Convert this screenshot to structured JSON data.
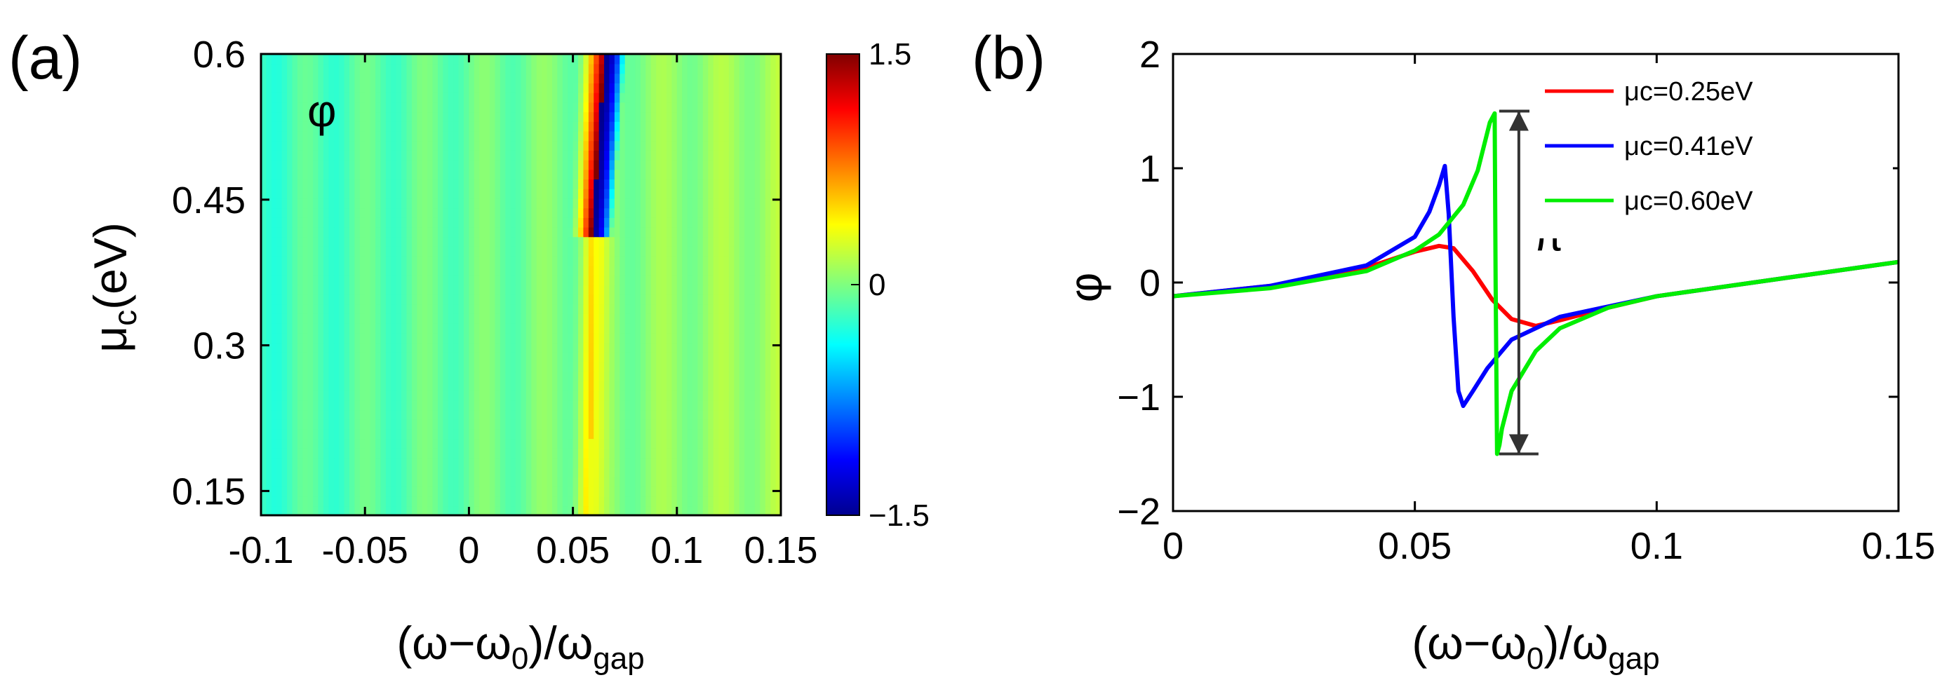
{
  "chart_data": [
    {
      "panel": "(a)",
      "type": "heatmap",
      "title": "",
      "annotation": "φ",
      "xlabel": "(ω−ω0)/ωgap",
      "ylabel": "μc(eV)",
      "xlim": [
        -0.1,
        0.15
      ],
      "ylim": [
        0.125,
        0.6
      ],
      "xticks": [
        "-0.1",
        "-0.05",
        "0",
        "0.05",
        "0.1",
        "0.15"
      ],
      "yticks": [
        "0.15",
        "0.3",
        "0.45",
        "0.6"
      ],
      "colorbar": {
        "min": -1.5,
        "max": 1.5,
        "ticks": [
          "1.5",
          "0",
          "−1.5"
        ],
        "colormap": [
          "#00008f",
          "#0000ff",
          "#00ffff",
          "#7fff7f",
          "#ffff00",
          "#ff0000",
          "#800000"
        ]
      },
      "resonance": {
        "mu_onset": 0.41,
        "omega_low": 0.058,
        "omega_high": 0.066
      }
    },
    {
      "panel": "(b)",
      "type": "line",
      "title": "",
      "xlabel": "(ω−ω0)/ωgap",
      "ylabel": "φ",
      "xlim": [
        0,
        0.15
      ],
      "ylim": [
        -2,
        2
      ],
      "xticks": [
        "0",
        "0.05",
        "0.1",
        "0.15"
      ],
      "yticks": [
        "2",
        "1",
        "0",
        "−1",
        "−2"
      ],
      "legend_position": "top-right",
      "series": [
        {
          "name": "μc=0.25eV",
          "color": "#ff0000",
          "x": [
            0,
            0.02,
            0.04,
            0.05,
            0.055,
            0.058,
            0.062,
            0.066,
            0.07,
            0.075,
            0.08,
            0.09,
            0.1,
            0.12,
            0.15
          ],
          "y": [
            -0.12,
            -0.03,
            0.13,
            0.27,
            0.32,
            0.3,
            0.1,
            -0.15,
            -0.32,
            -0.38,
            -0.33,
            -0.22,
            -0.12,
            0.0,
            0.18
          ]
        },
        {
          "name": "μc=0.41eV",
          "color": "#0000ff",
          "x": [
            0,
            0.02,
            0.04,
            0.05,
            0.053,
            0.055,
            0.0562,
            0.057,
            0.058,
            0.059,
            0.06,
            0.062,
            0.065,
            0.07,
            0.08,
            0.1,
            0.12,
            0.15
          ],
          "y": [
            -0.12,
            -0.03,
            0.15,
            0.4,
            0.62,
            0.85,
            1.02,
            0.6,
            -0.3,
            -0.95,
            -1.08,
            -0.95,
            -0.75,
            -0.5,
            -0.3,
            -0.12,
            0.0,
            0.18
          ]
        },
        {
          "name": "μc=0.60eV",
          "color": "#00ee00",
          "x": [
            0,
            0.02,
            0.04,
            0.05,
            0.055,
            0.06,
            0.063,
            0.0655,
            0.0665,
            0.0667,
            0.067,
            0.0675,
            0.068,
            0.07,
            0.075,
            0.08,
            0.09,
            0.1,
            0.12,
            0.15
          ],
          "y": [
            -0.12,
            -0.05,
            0.1,
            0.28,
            0.42,
            0.68,
            0.98,
            1.4,
            1.48,
            0.0,
            -1.5,
            -1.42,
            -1.28,
            -0.95,
            -0.6,
            -0.4,
            -0.22,
            -0.12,
            0.0,
            0.18
          ]
        }
      ],
      "annotation": {
        "label": "π",
        "from": -1.5,
        "to": 1.5,
        "x": 0.0715
      }
    }
  ]
}
